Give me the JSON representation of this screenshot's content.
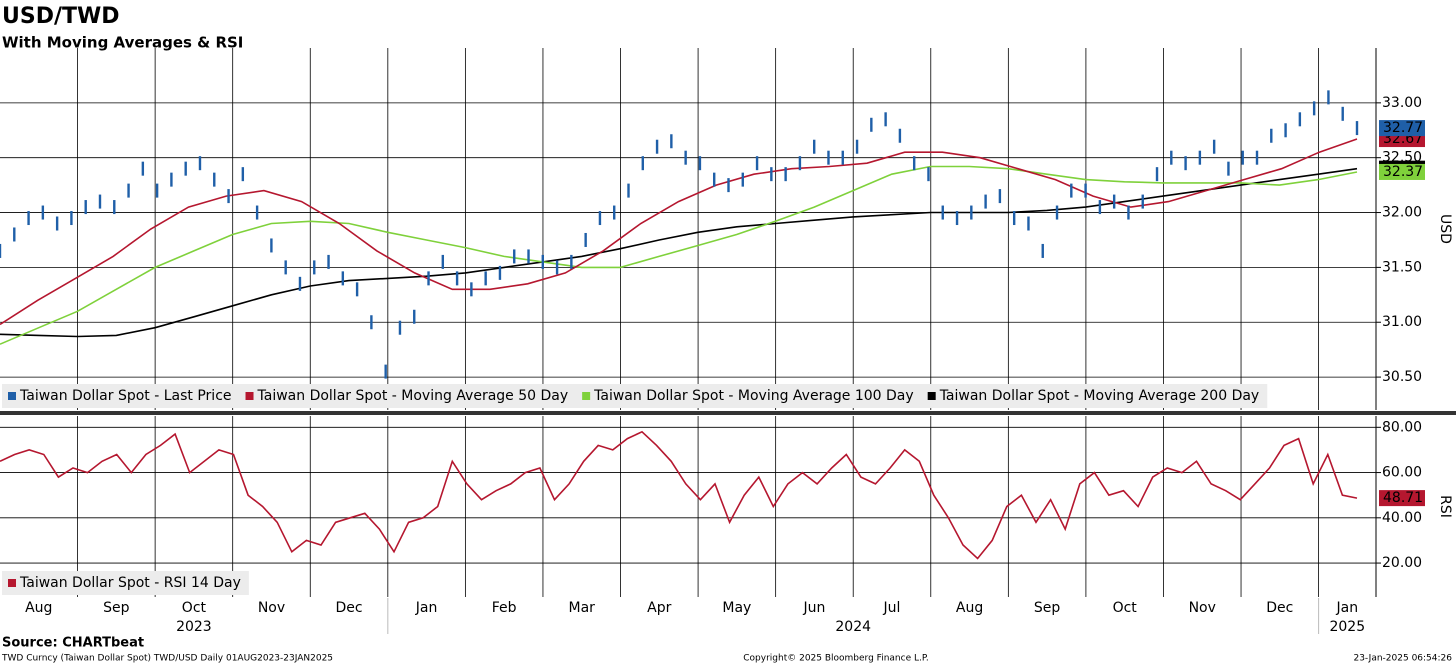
{
  "chart_data": {
    "type": "line",
    "title": "USD/TWD",
    "subtitle": "With Moving Averages & RSI",
    "months": [
      "Aug",
      "Sep",
      "Oct",
      "Nov",
      "Dec",
      "Jan",
      "Feb",
      "Mar",
      "Apr",
      "May",
      "Jun",
      "Jul",
      "Aug",
      "Sep",
      "Oct",
      "Nov",
      "Dec",
      "Jan"
    ],
    "years": [
      "2023",
      "2024",
      "2025"
    ],
    "grid": true,
    "panels": [
      {
        "y_label": "USD",
        "ylim": [
          30.2,
          33.5
        ],
        "yticks": [
          {
            "value": 30.5,
            "label": "30.50"
          },
          {
            "value": 31,
            "label": "31.00"
          },
          {
            "value": 31.5,
            "label": "31.50"
          },
          {
            "value": 32,
            "label": "32.00"
          },
          {
            "value": 32.5,
            "label": "32.50"
          },
          {
            "value": 33,
            "label": "33.00"
          }
        ],
        "series": [
          {
            "name": "Taiwan Dollar Spot - Moving Average 200 Day",
            "color": "#000000",
            "style": "line",
            "values": [
              30.89,
              30.88,
              30.87,
              30.88,
              30.95,
              31.05,
              31.15,
              31.25,
              31.33,
              31.38,
              31.4,
              31.42,
              31.45,
              31.5,
              31.55,
              31.6,
              31.67,
              31.75,
              31.82,
              31.87,
              31.9,
              31.93,
              31.96,
              31.98,
              32.0,
              32.0,
              32.0,
              32.02,
              32.05,
              32.1,
              32.15,
              32.2,
              32.25,
              32.3,
              32.35,
              32.4
            ]
          },
          {
            "name": "Taiwan Dollar Spot - Moving Average 100 Day",
            "color": "#7fd13b",
            "style": "line",
            "values": [
              30.8,
              30.95,
              31.1,
              31.3,
              31.5,
              31.65,
              31.8,
              31.9,
              31.92,
              31.9,
              31.82,
              31.75,
              31.68,
              31.6,
              31.55,
              31.5,
              31.5,
              31.6,
              31.7,
              31.8,
              31.92,
              32.05,
              32.2,
              32.35,
              32.42,
              32.42,
              32.4,
              32.35,
              32.3,
              32.28,
              32.27,
              32.27,
              32.27,
              32.25,
              32.3,
              32.37
            ]
          },
          {
            "name": "Taiwan Dollar Spot - Moving Average 50 Day",
            "color": "#b5172f",
            "style": "line",
            "values": [
              30.98,
              31.2,
              31.4,
              31.6,
              31.85,
              32.05,
              32.15,
              32.2,
              32.1,
              31.9,
              31.65,
              31.45,
              31.3,
              31.3,
              31.35,
              31.45,
              31.65,
              31.9,
              32.1,
              32.25,
              32.35,
              32.4,
              32.42,
              32.45,
              32.55,
              32.55,
              32.5,
              32.4,
              32.3,
              32.15,
              32.05,
              32.1,
              32.2,
              32.3,
              32.4,
              32.55,
              32.67
            ]
          },
          {
            "name": "Taiwan Dollar Spot - Last Price",
            "color": "#1f5fa8",
            "style": "bar",
            "values": [
              31.65,
              31.8,
              31.95,
              32.0,
              31.9,
              31.95,
              32.05,
              32.1,
              32.05,
              32.2,
              32.4,
              32.2,
              32.3,
              32.4,
              32.45,
              32.3,
              32.15,
              32.35,
              32.0,
              31.7,
              31.5,
              31.35,
              31.5,
              31.55,
              31.4,
              31.3,
              31.0,
              30.55,
              30.95,
              31.05,
              31.4,
              31.55,
              31.4,
              31.3,
              31.4,
              31.45,
              31.6,
              31.6,
              31.55,
              31.5,
              31.55,
              31.75,
              31.95,
              32.0,
              32.2,
              32.45,
              32.6,
              32.65,
              32.5,
              32.45,
              32.3,
              32.25,
              32.3,
              32.45,
              32.35,
              32.35,
              32.45,
              32.6,
              32.5,
              32.5,
              32.6,
              32.8,
              32.85,
              32.7,
              32.45,
              32.35,
              32.0,
              31.95,
              32.0,
              32.1,
              32.15,
              31.95,
              31.9,
              31.65,
              32.0,
              32.2,
              32.2,
              32.05,
              32.1,
              32.0,
              32.1,
              32.35,
              32.5,
              32.45,
              32.5,
              32.6,
              32.4,
              32.5,
              32.5,
              32.7,
              32.75,
              32.85,
              32.95,
              33.05,
              32.9,
              32.77
            ]
          }
        ],
        "legend_order": [
          3,
          2,
          1,
          0
        ]
      },
      {
        "y_label": "RSI",
        "ylim": [
          5,
          85
        ],
        "yticks": [
          {
            "value": 20,
            "label": "20.00"
          },
          {
            "value": 40,
            "label": "40.00"
          },
          {
            "value": 60,
            "label": "60.00"
          },
          {
            "value": 80,
            "label": "80.00"
          }
        ],
        "series": [
          {
            "name": "Taiwan Dollar Spot - RSI 14 Day",
            "color": "#b5172f",
            "style": "line",
            "values": [
              65,
              68,
              70,
              68,
              58,
              62,
              60,
              65,
              68,
              60,
              68,
              72,
              77,
              60,
              65,
              70,
              68,
              50,
              45,
              38,
              25,
              30,
              28,
              38,
              40,
              42,
              35,
              25,
              38,
              40,
              45,
              65,
              55,
              48,
              52,
              55,
              60,
              62,
              48,
              55,
              65,
              72,
              70,
              75,
              78,
              72,
              65,
              55,
              48,
              55,
              38,
              50,
              58,
              45,
              55,
              60,
              55,
              62,
              68,
              58,
              55,
              62,
              70,
              65,
              50,
              40,
              28,
              22,
              30,
              45,
              50,
              38,
              48,
              35,
              55,
              60,
              50,
              52,
              45,
              58,
              62,
              60,
              65,
              55,
              52,
              48,
              55,
              62,
              72,
              75,
              55,
              68,
              50,
              48.71
            ]
          }
        ],
        "legend_order": [
          0
        ]
      }
    ]
  },
  "footer": {
    "source": "Source: CHARTbeat",
    "description": "TWD Curncy (Taiwan Dollar Spot) TWD/USD  Daily 01AUG2023-23JAN2025",
    "copyright": "Copyright© 2025 Bloomberg Finance L.P.",
    "timestamp": "23-Jan-2025 06:54:26"
  }
}
